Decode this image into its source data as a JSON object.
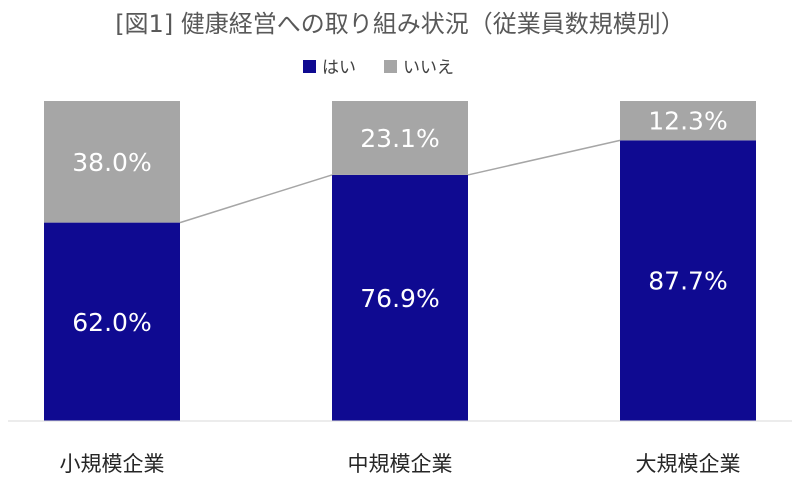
{
  "chart_data": {
    "type": "bar",
    "stacked": "percent",
    "title": "[図1] 健康経営への取り組み状況（従業員数規模別）",
    "categories": [
      "小規模企業",
      "中規模企業",
      "大規模企業"
    ],
    "series": [
      {
        "name": "はい",
        "values": [
          62.0,
          76.9,
          87.7
        ],
        "labels": [
          "62.0%",
          "76.9%",
          "87.7%"
        ],
        "color": "#0f0a91"
      },
      {
        "name": "いいえ",
        "values": [
          38.0,
          23.1,
          12.3
        ],
        "labels": [
          "38.0%",
          "23.1%",
          "12.3%"
        ],
        "color": "#a6a6a6"
      }
    ],
    "ylim": [
      0,
      100
    ],
    "grid": false,
    "legend_position": "top-center",
    "series_lines": true
  }
}
